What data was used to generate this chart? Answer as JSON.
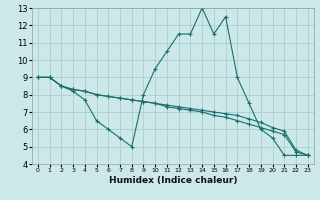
{
  "xlabel": "Humidex (Indice chaleur)",
  "bg_color": "#cce8e8",
  "grid_color": "#aad0d0",
  "line_color": "#1a6e6e",
  "xlim": [
    -0.5,
    23.5
  ],
  "ylim": [
    4,
    13
  ],
  "xticks": [
    0,
    1,
    2,
    3,
    4,
    5,
    6,
    7,
    8,
    9,
    10,
    11,
    12,
    13,
    14,
    15,
    16,
    17,
    18,
    19,
    20,
    21,
    22,
    23
  ],
  "yticks": [
    4,
    5,
    6,
    7,
    8,
    9,
    10,
    11,
    12,
    13
  ],
  "series": [
    {
      "x": [
        0,
        1,
        2,
        3,
        4,
        5,
        6,
        7,
        8,
        9,
        10,
        11,
        12,
        13,
        14,
        15,
        16,
        17,
        18,
        19,
        20,
        21,
        22,
        23
      ],
      "y": [
        9,
        9,
        8.5,
        8.2,
        7.7,
        6.5,
        6.0,
        5.5,
        5.0,
        8.0,
        9.5,
        10.5,
        11.5,
        11.5,
        13.0,
        11.5,
        12.5,
        9.0,
        7.5,
        6.0,
        5.5,
        4.5,
        4.5,
        4.5
      ]
    },
    {
      "x": [
        0,
        1,
        2,
        3,
        4,
        5,
        6,
        7,
        8,
        9,
        10,
        11,
        12,
        13,
        14,
        15,
        16,
        17,
        18,
        19,
        20,
        21,
        22,
        23
      ],
      "y": [
        9,
        9,
        8.5,
        8.3,
        8.2,
        8.0,
        7.9,
        7.8,
        7.7,
        7.6,
        7.5,
        7.3,
        7.2,
        7.1,
        7.0,
        6.8,
        6.7,
        6.5,
        6.3,
        6.1,
        5.9,
        5.7,
        4.7,
        4.5
      ]
    },
    {
      "x": [
        0,
        1,
        2,
        3,
        4,
        5,
        6,
        7,
        8,
        9,
        10,
        11,
        12,
        13,
        14,
        15,
        16,
        17,
        18,
        19,
        20,
        21,
        22,
        23
      ],
      "y": [
        9,
        9,
        8.5,
        8.3,
        8.2,
        8.0,
        7.9,
        7.8,
        7.7,
        7.6,
        7.5,
        7.4,
        7.3,
        7.2,
        7.1,
        7.0,
        6.9,
        6.8,
        6.6,
        6.4,
        6.1,
        5.9,
        4.8,
        4.5
      ]
    }
  ]
}
